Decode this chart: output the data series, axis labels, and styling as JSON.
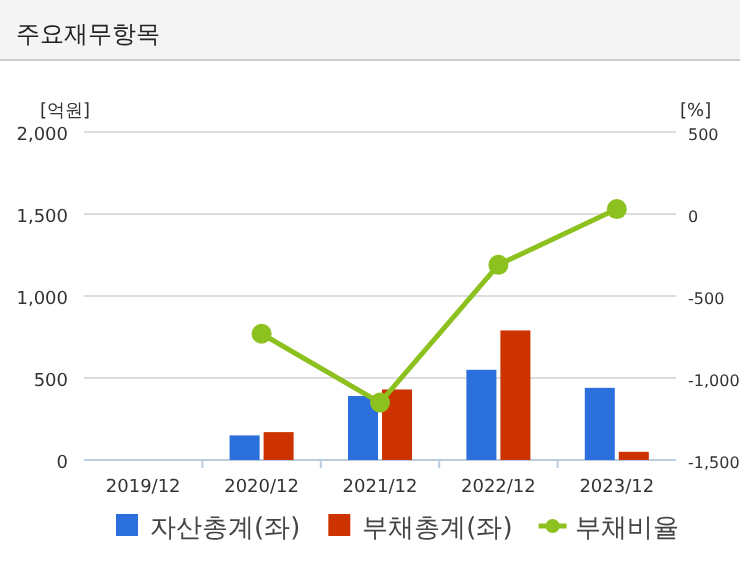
{
  "chart_data": {
    "type": "bar",
    "title": "주요재무항목",
    "ylabel": "[억원]",
    "y2label": "[%]",
    "categories": [
      "2019/12",
      "2020/12",
      "2021/12",
      "2022/12",
      "2023/12"
    ],
    "series": [
      {
        "name": "자산총계(좌)",
        "color": "#2a6fdb",
        "values": [
          null,
          150,
          390,
          550,
          440
        ]
      },
      {
        "name": "부채총계(좌)",
        "color": "#cc3300",
        "values": [
          null,
          170,
          430,
          790,
          50
        ]
      },
      {
        "name": "부채비율",
        "type": "line",
        "axis": "y2",
        "color": "#8cc11f",
        "marker": "circle",
        "values": [
          null,
          -730,
          -1150,
          -310,
          30
        ]
      }
    ],
    "ylim": [
      0,
      2000
    ],
    "yticks": [
      0,
      {
        "value": 500,
        "label": "500"
      },
      {
        "value": 1000,
        "label": "1,000"
      },
      {
        "value": 1500,
        "label": "1,500"
      },
      {
        "value": 2000,
        "label": "2,000"
      }
    ],
    "y2lim": [
      -1500,
      500
    ],
    "y2ticks": [
      {
        "value": -1500,
        "label": "-1,500"
      },
      {
        "value": -1000,
        "label": "-1,000"
      },
      -500,
      0,
      500
    ],
    "grid": "y",
    "legend": "bottom"
  }
}
